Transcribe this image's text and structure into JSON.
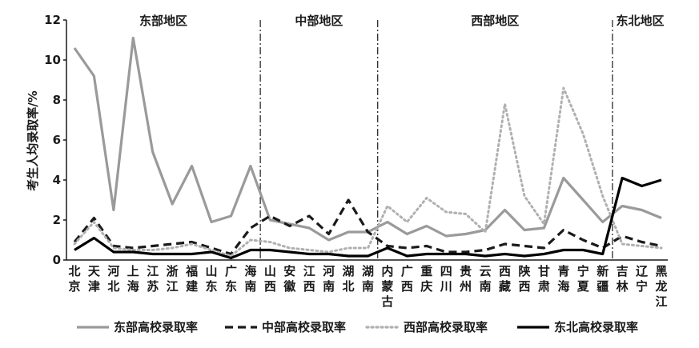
{
  "chart_data": {
    "type": "line",
    "ylabel": "考生人均录取率/%",
    "ylim": [
      0,
      12
    ],
    "yticks": [
      0,
      2,
      4,
      6,
      8,
      10,
      12
    ],
    "categories": [
      "北京",
      "天津",
      "河北",
      "上海",
      "江苏",
      "浙江",
      "福建",
      "山东",
      "广东",
      "海南",
      "山西",
      "安徽",
      "江西",
      "河南",
      "湖北",
      "湖南",
      "内蒙古",
      "广西",
      "重庆",
      "四川",
      "贵州",
      "云南",
      "西藏",
      "陕西",
      "甘肃",
      "青海",
      "宁夏",
      "新疆",
      "吉林",
      "辽宁",
      "黑龙江"
    ],
    "regions": [
      {
        "name": "东部地区",
        "start": 0,
        "end": 9
      },
      {
        "name": "中部地区",
        "start": 10,
        "end": 15
      },
      {
        "name": "西部地区",
        "start": 16,
        "end": 27
      },
      {
        "name": "东北地区",
        "start": 28,
        "end": 30
      }
    ],
    "series": [
      {
        "name": "东部高校录取率",
        "color": "#9a9a9a",
        "style": "solid",
        "values": [
          10.6,
          9.2,
          2.5,
          11.1,
          5.4,
          2.8,
          4.7,
          1.9,
          2.2,
          4.7,
          2.0,
          1.8,
          1.6,
          1.0,
          1.4,
          1.4,
          1.9,
          1.3,
          1.7,
          1.2,
          1.3,
          1.5,
          2.5,
          1.5,
          1.6,
          4.1,
          3.0,
          1.9,
          2.7,
          2.5,
          2.1
        ]
      },
      {
        "name": "中部高校录取率",
        "color": "#1a1a1a",
        "style": "dashed",
        "values": [
          0.9,
          2.1,
          0.7,
          0.6,
          0.7,
          0.8,
          0.9,
          0.6,
          0.3,
          1.6,
          2.2,
          1.7,
          2.2,
          1.3,
          3.0,
          1.4,
          0.7,
          0.6,
          0.7,
          0.4,
          0.4,
          0.5,
          0.8,
          0.7,
          0.6,
          1.5,
          1.0,
          0.6,
          1.2,
          0.9,
          0.7
        ]
      },
      {
        "name": "西部高校录取率",
        "color": "#b0b0b0",
        "style": "dotted",
        "values": [
          0.8,
          1.9,
          0.6,
          0.5,
          0.5,
          0.6,
          0.8,
          0.5,
          0.2,
          1.0,
          0.9,
          0.6,
          0.5,
          0.4,
          0.6,
          0.6,
          2.7,
          1.9,
          3.1,
          2.4,
          2.3,
          1.4,
          7.8,
          3.2,
          1.8,
          8.6,
          6.3,
          3.2,
          0.8,
          0.7,
          0.6
        ]
      },
      {
        "name": "东北高校录取率",
        "color": "#000000",
        "style": "solid",
        "values": [
          0.5,
          1.1,
          0.4,
          0.4,
          0.3,
          0.3,
          0.3,
          0.4,
          0.1,
          0.5,
          0.5,
          0.4,
          0.3,
          0.3,
          0.2,
          0.2,
          0.6,
          0.2,
          0.3,
          0.3,
          0.3,
          0.2,
          0.3,
          0.2,
          0.3,
          0.5,
          0.5,
          0.3,
          4.1,
          3.7,
          4.0
        ]
      }
    ]
  }
}
